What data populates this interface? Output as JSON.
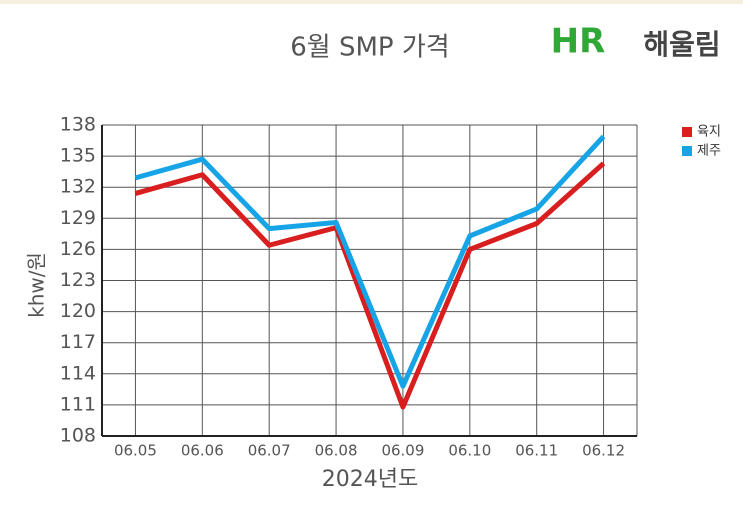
{
  "chart_data": {
    "type": "line",
    "title": "6월 SMP 가격",
    "logo_mark": "HR",
    "logo_name": "해울림",
    "x_label": "2024년도",
    "y_label": "khw/원",
    "categories": [
      "06.05",
      "06.06",
      "06.07",
      "06.08",
      "06.09",
      "06.10",
      "06.11",
      "06.12"
    ],
    "series": [
      {
        "name": "육지",
        "color": "#d81e1e",
        "values": [
          131.4,
          133.2,
          126.4,
          128.1,
          110.8,
          126.0,
          128.5,
          134.3
        ]
      },
      {
        "name": "제주",
        "color": "#16a4e6",
        "values": [
          132.9,
          134.7,
          128.0,
          128.6,
          112.8,
          127.3,
          129.9,
          136.9
        ]
      }
    ],
    "ylim": [
      108,
      138
    ],
    "yticks": [
      108,
      111,
      114,
      117,
      120,
      123,
      126,
      129,
      132,
      135,
      138
    ],
    "grid": true,
    "legend": "top-right"
  }
}
